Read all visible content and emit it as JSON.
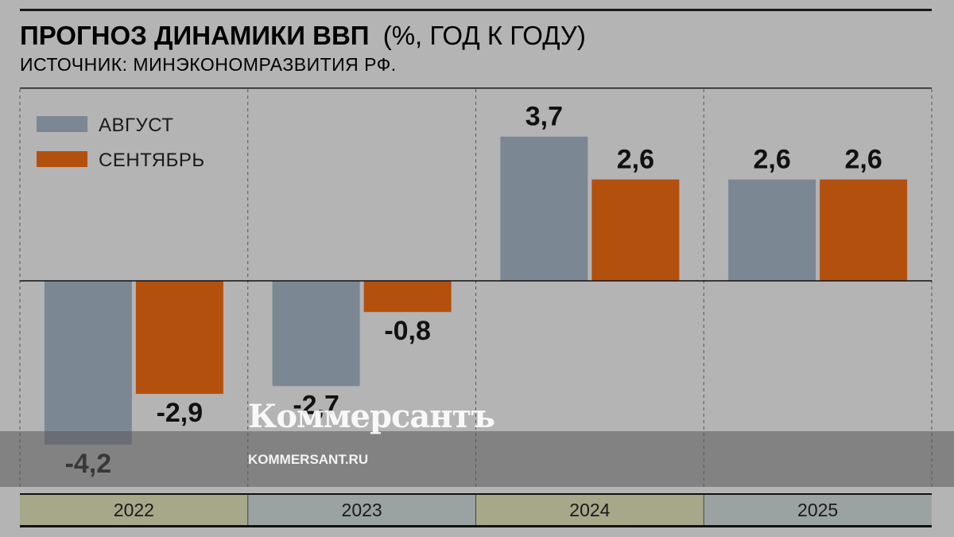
{
  "header": {
    "title_bold": "ПРОГНОЗ ДИНАМИКИ ВВП",
    "title_light": "(%, ГОД К ГОДУ)",
    "source": "ИСТОЧНИК: МИНЭКОНОМРАЗВИТИЯ РФ."
  },
  "chart_data": {
    "type": "bar",
    "categories": [
      "2022",
      "2023",
      "2024",
      "2025"
    ],
    "series": [
      {
        "name": "АВГУСТ",
        "values": [
          -4.2,
          -2.7,
          3.7,
          2.6
        ],
        "labels": [
          "-4,2",
          "-2,7",
          "3,7",
          "2,6"
        ],
        "color": "#7b8893"
      },
      {
        "name": "СЕНТЯБРЬ",
        "values": [
          -2.9,
          -0.8,
          2.6,
          2.6
        ],
        "labels": [
          "-2,9",
          "-0,8",
          "2,6",
          "2,6"
        ],
        "color": "#b4500e"
      }
    ],
    "legend_placement": "top-left",
    "ylim": [
      -5.2,
      5.0
    ],
    "category_colors": [
      "#a7a78a",
      "#9aa3a2",
      "#a7a78a",
      "#9aa3a2"
    ]
  },
  "watermark": {
    "brand": "Коммерсантъ",
    "url": "KOMMERSANT.RU"
  }
}
